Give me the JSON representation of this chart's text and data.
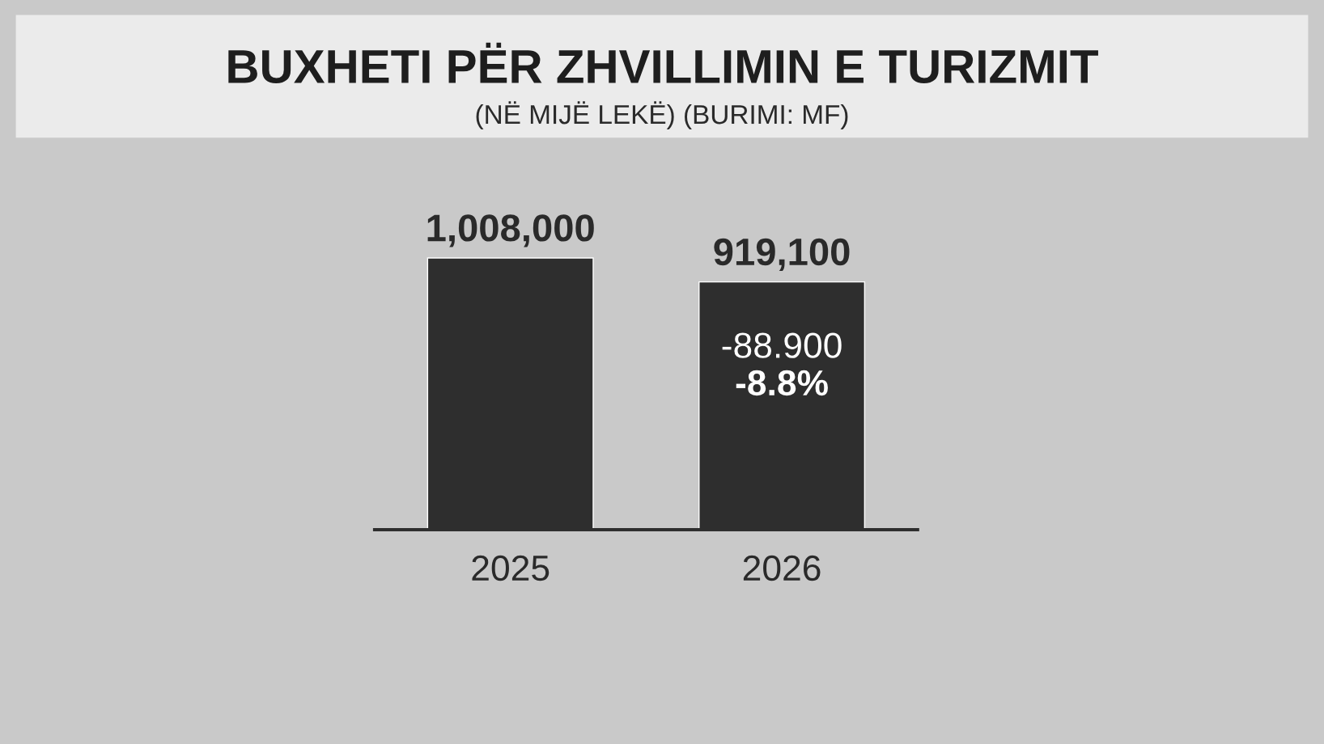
{
  "chart_data": {
    "type": "bar",
    "title": "BUXHETI PËR ZHVILLIMIN E TURIZMIT",
    "subtitle": "(NË MIJË LEKË) (BURIMI: MF)",
    "categories": [
      "2025",
      "2026"
    ],
    "values": [
      1008000,
      919100
    ],
    "value_labels": [
      "1,008,000",
      "919,100"
    ],
    "color": "#2e2e2e",
    "annotations": [
      "-88.900",
      "-8.8%"
    ],
    "legend": false
  }
}
